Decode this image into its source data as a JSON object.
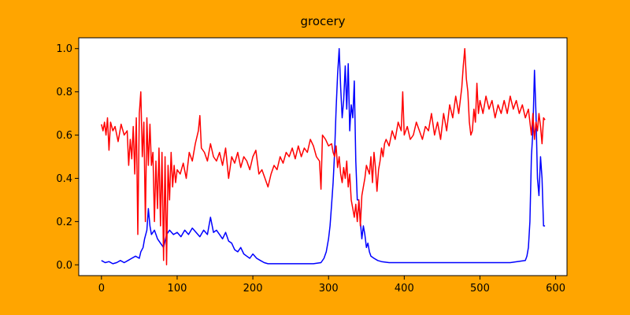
{
  "chart_data": {
    "type": "line",
    "title": "grocery",
    "xlabel": "",
    "ylabel": "",
    "xlim": [
      -30,
      615
    ],
    "ylim": [
      -0.05,
      1.05
    ],
    "x_ticks": [
      0,
      100,
      200,
      300,
      400,
      500,
      600
    ],
    "x_tick_labels": [
      "0",
      "100",
      "200",
      "300",
      "400",
      "500",
      "600"
    ],
    "y_ticks": [
      0.0,
      0.2,
      0.4,
      0.6,
      0.8,
      1.0
    ],
    "y_tick_labels": [
      "0.0",
      "0.2",
      "0.4",
      "0.6",
      "0.8",
      "1.0"
    ],
    "grid": false,
    "legend": "none",
    "background_color": "#FFA500",
    "plot_background_color": "#FFFFFF",
    "series": [
      {
        "color": "#0000FF",
        "points": [
          [
            0,
            0.02
          ],
          [
            5,
            0.01
          ],
          [
            10,
            0.015
          ],
          [
            15,
            0.005
          ],
          [
            20,
            0.01
          ],
          [
            25,
            0.02
          ],
          [
            30,
            0.01
          ],
          [
            35,
            0.02
          ],
          [
            40,
            0.03
          ],
          [
            45,
            0.04
          ],
          [
            50,
            0.03
          ],
          [
            52,
            0.06
          ],
          [
            55,
            0.08
          ],
          [
            57,
            0.12
          ],
          [
            60,
            0.16
          ],
          [
            62,
            0.26
          ],
          [
            64,
            0.18
          ],
          [
            66,
            0.14
          ],
          [
            70,
            0.16
          ],
          [
            74,
            0.12
          ],
          [
            78,
            0.1
          ],
          [
            82,
            0.08
          ],
          [
            86,
            0.14
          ],
          [
            90,
            0.16
          ],
          [
            95,
            0.14
          ],
          [
            100,
            0.15
          ],
          [
            105,
            0.13
          ],
          [
            110,
            0.16
          ],
          [
            115,
            0.14
          ],
          [
            120,
            0.17
          ],
          [
            125,
            0.15
          ],
          [
            130,
            0.13
          ],
          [
            135,
            0.16
          ],
          [
            140,
            0.14
          ],
          [
            144,
            0.22
          ],
          [
            148,
            0.15
          ],
          [
            152,
            0.16
          ],
          [
            156,
            0.14
          ],
          [
            160,
            0.12
          ],
          [
            164,
            0.15
          ],
          [
            168,
            0.11
          ],
          [
            172,
            0.1
          ],
          [
            176,
            0.07
          ],
          [
            180,
            0.06
          ],
          [
            184,
            0.08
          ],
          [
            188,
            0.05
          ],
          [
            192,
            0.04
          ],
          [
            196,
            0.03
          ],
          [
            200,
            0.05
          ],
          [
            205,
            0.03
          ],
          [
            210,
            0.02
          ],
          [
            215,
            0.01
          ],
          [
            220,
            0.005
          ],
          [
            230,
            0.005
          ],
          [
            240,
            0.005
          ],
          [
            250,
            0.005
          ],
          [
            260,
            0.005
          ],
          [
            270,
            0.005
          ],
          [
            280,
            0.005
          ],
          [
            290,
            0.01
          ],
          [
            294,
            0.03
          ],
          [
            297,
            0.06
          ],
          [
            300,
            0.12
          ],
          [
            302,
            0.18
          ],
          [
            304,
            0.28
          ],
          [
            306,
            0.38
          ],
          [
            308,
            0.52
          ],
          [
            310,
            0.72
          ],
          [
            312,
            0.88
          ],
          [
            314,
            1.0
          ],
          [
            316,
            0.82
          ],
          [
            318,
            0.68
          ],
          [
            320,
            0.76
          ],
          [
            322,
            0.92
          ],
          [
            324,
            0.72
          ],
          [
            326,
            0.93
          ],
          [
            328,
            0.62
          ],
          [
            330,
            0.74
          ],
          [
            332,
            0.68
          ],
          [
            334,
            0.85
          ],
          [
            336,
            0.48
          ],
          [
            338,
            0.3
          ],
          [
            340,
            0.3
          ],
          [
            342,
            0.2
          ],
          [
            344,
            0.12
          ],
          [
            346,
            0.18
          ],
          [
            348,
            0.14
          ],
          [
            350,
            0.08
          ],
          [
            352,
            0.1
          ],
          [
            354,
            0.06
          ],
          [
            356,
            0.04
          ],
          [
            360,
            0.03
          ],
          [
            365,
            0.02
          ],
          [
            370,
            0.015
          ],
          [
            380,
            0.01
          ],
          [
            400,
            0.01
          ],
          [
            420,
            0.01
          ],
          [
            440,
            0.01
          ],
          [
            460,
            0.01
          ],
          [
            480,
            0.01
          ],
          [
            500,
            0.01
          ],
          [
            520,
            0.01
          ],
          [
            540,
            0.01
          ],
          [
            560,
            0.02
          ],
          [
            562,
            0.04
          ],
          [
            564,
            0.08
          ],
          [
            566,
            0.2
          ],
          [
            568,
            0.5
          ],
          [
            570,
            0.62
          ],
          [
            572,
            0.9
          ],
          [
            574,
            0.7
          ],
          [
            576,
            0.4
          ],
          [
            578,
            0.32
          ],
          [
            580,
            0.5
          ],
          [
            582,
            0.4
          ],
          [
            584,
            0.18
          ],
          [
            586,
            0.18
          ]
        ]
      },
      {
        "color": "#FF0000",
        "points": [
          [
            0,
            0.65
          ],
          [
            2,
            0.62
          ],
          [
            4,
            0.66
          ],
          [
            6,
            0.6
          ],
          [
            8,
            0.68
          ],
          [
            10,
            0.53
          ],
          [
            12,
            0.66
          ],
          [
            15,
            0.62
          ],
          [
            18,
            0.64
          ],
          [
            22,
            0.57
          ],
          [
            26,
            0.65
          ],
          [
            30,
            0.6
          ],
          [
            34,
            0.62
          ],
          [
            36,
            0.46
          ],
          [
            38,
            0.58
          ],
          [
            40,
            0.49
          ],
          [
            42,
            0.64
          ],
          [
            44,
            0.42
          ],
          [
            46,
            0.68
          ],
          [
            48,
            0.14
          ],
          [
            50,
            0.7
          ],
          [
            52,
            0.8
          ],
          [
            54,
            0.5
          ],
          [
            56,
            0.66
          ],
          [
            58,
            0.2
          ],
          [
            60,
            0.68
          ],
          [
            62,
            0.46
          ],
          [
            64,
            0.65
          ],
          [
            66,
            0.46
          ],
          [
            68,
            0.52
          ],
          [
            70,
            0.2
          ],
          [
            72,
            0.48
          ],
          [
            74,
            0.26
          ],
          [
            76,
            0.54
          ],
          [
            78,
            0.18
          ],
          [
            80,
            0.52
          ],
          [
            82,
            0.02
          ],
          [
            84,
            0.5
          ],
          [
            86,
            0.0
          ],
          [
            88,
            0.46
          ],
          [
            90,
            0.3
          ],
          [
            92,
            0.52
          ],
          [
            94,
            0.36
          ],
          [
            96,
            0.46
          ],
          [
            98,
            0.38
          ],
          [
            100,
            0.44
          ],
          [
            104,
            0.42
          ],
          [
            108,
            0.47
          ],
          [
            112,
            0.4
          ],
          [
            116,
            0.52
          ],
          [
            120,
            0.48
          ],
          [
            124,
            0.56
          ],
          [
            128,
            0.62
          ],
          [
            130,
            0.69
          ],
          [
            132,
            0.54
          ],
          [
            136,
            0.52
          ],
          [
            140,
            0.48
          ],
          [
            144,
            0.56
          ],
          [
            148,
            0.5
          ],
          [
            152,
            0.48
          ],
          [
            156,
            0.52
          ],
          [
            160,
            0.46
          ],
          [
            164,
            0.54
          ],
          [
            168,
            0.4
          ],
          [
            172,
            0.5
          ],
          [
            176,
            0.47
          ],
          [
            180,
            0.52
          ],
          [
            184,
            0.45
          ],
          [
            188,
            0.5
          ],
          [
            192,
            0.48
          ],
          [
            196,
            0.44
          ],
          [
            200,
            0.5
          ],
          [
            204,
            0.53
          ],
          [
            208,
            0.42
          ],
          [
            212,
            0.44
          ],
          [
            216,
            0.4
          ],
          [
            220,
            0.36
          ],
          [
            224,
            0.42
          ],
          [
            228,
            0.46
          ],
          [
            232,
            0.44
          ],
          [
            236,
            0.5
          ],
          [
            240,
            0.47
          ],
          [
            244,
            0.52
          ],
          [
            248,
            0.5
          ],
          [
            252,
            0.54
          ],
          [
            256,
            0.49
          ],
          [
            260,
            0.55
          ],
          [
            264,
            0.5
          ],
          [
            268,
            0.54
          ],
          [
            272,
            0.52
          ],
          [
            276,
            0.58
          ],
          [
            280,
            0.55
          ],
          [
            284,
            0.5
          ],
          [
            288,
            0.48
          ],
          [
            290,
            0.35
          ],
          [
            292,
            0.6
          ],
          [
            296,
            0.58
          ],
          [
            300,
            0.55
          ],
          [
            304,
            0.56
          ],
          [
            306,
            0.52
          ],
          [
            308,
            0.5
          ],
          [
            310,
            0.55
          ],
          [
            312,
            0.45
          ],
          [
            314,
            0.5
          ],
          [
            316,
            0.42
          ],
          [
            318,
            0.38
          ],
          [
            320,
            0.45
          ],
          [
            322,
            0.4
          ],
          [
            324,
            0.48
          ],
          [
            326,
            0.36
          ],
          [
            328,
            0.42
          ],
          [
            330,
            0.3
          ],
          [
            332,
            0.26
          ],
          [
            334,
            0.22
          ],
          [
            336,
            0.28
          ],
          [
            338,
            0.2
          ],
          [
            340,
            0.3
          ],
          [
            342,
            0.18
          ],
          [
            344,
            0.32
          ],
          [
            346,
            0.36
          ],
          [
            348,
            0.4
          ],
          [
            350,
            0.46
          ],
          [
            352,
            0.44
          ],
          [
            354,
            0.42
          ],
          [
            356,
            0.5
          ],
          [
            358,
            0.38
          ],
          [
            360,
            0.52
          ],
          [
            362,
            0.45
          ],
          [
            364,
            0.34
          ],
          [
            366,
            0.44
          ],
          [
            368,
            0.48
          ],
          [
            370,
            0.54
          ],
          [
            372,
            0.5
          ],
          [
            374,
            0.56
          ],
          [
            376,
            0.58
          ],
          [
            380,
            0.55
          ],
          [
            384,
            0.62
          ],
          [
            388,
            0.58
          ],
          [
            392,
            0.66
          ],
          [
            396,
            0.62
          ],
          [
            398,
            0.8
          ],
          [
            400,
            0.6
          ],
          [
            404,
            0.64
          ],
          [
            408,
            0.58
          ],
          [
            412,
            0.6
          ],
          [
            416,
            0.66
          ],
          [
            420,
            0.62
          ],
          [
            424,
            0.58
          ],
          [
            428,
            0.64
          ],
          [
            432,
            0.62
          ],
          [
            436,
            0.7
          ],
          [
            440,
            0.6
          ],
          [
            444,
            0.66
          ],
          [
            448,
            0.58
          ],
          [
            452,
            0.7
          ],
          [
            456,
            0.62
          ],
          [
            460,
            0.74
          ],
          [
            464,
            0.68
          ],
          [
            468,
            0.78
          ],
          [
            472,
            0.7
          ],
          [
            476,
            0.82
          ],
          [
            478,
            0.92
          ],
          [
            480,
            1.0
          ],
          [
            482,
            0.86
          ],
          [
            484,
            0.8
          ],
          [
            486,
            0.66
          ],
          [
            488,
            0.6
          ],
          [
            490,
            0.62
          ],
          [
            492,
            0.72
          ],
          [
            494,
            0.66
          ],
          [
            496,
            0.84
          ],
          [
            498,
            0.7
          ],
          [
            500,
            0.76
          ],
          [
            504,
            0.7
          ],
          [
            508,
            0.78
          ],
          [
            512,
            0.72
          ],
          [
            516,
            0.76
          ],
          [
            520,
            0.68
          ],
          [
            524,
            0.74
          ],
          [
            528,
            0.7
          ],
          [
            532,
            0.76
          ],
          [
            536,
            0.7
          ],
          [
            540,
            0.78
          ],
          [
            544,
            0.72
          ],
          [
            548,
            0.76
          ],
          [
            552,
            0.7
          ],
          [
            556,
            0.74
          ],
          [
            560,
            0.68
          ],
          [
            564,
            0.72
          ],
          [
            568,
            0.6
          ],
          [
            570,
            0.7
          ],
          [
            572,
            0.58
          ],
          [
            574,
            0.66
          ],
          [
            576,
            0.62
          ],
          [
            578,
            0.7
          ],
          [
            580,
            0.64
          ],
          [
            582,
            0.56
          ],
          [
            584,
            0.68
          ],
          [
            586,
            0.67
          ]
        ]
      }
    ]
  }
}
